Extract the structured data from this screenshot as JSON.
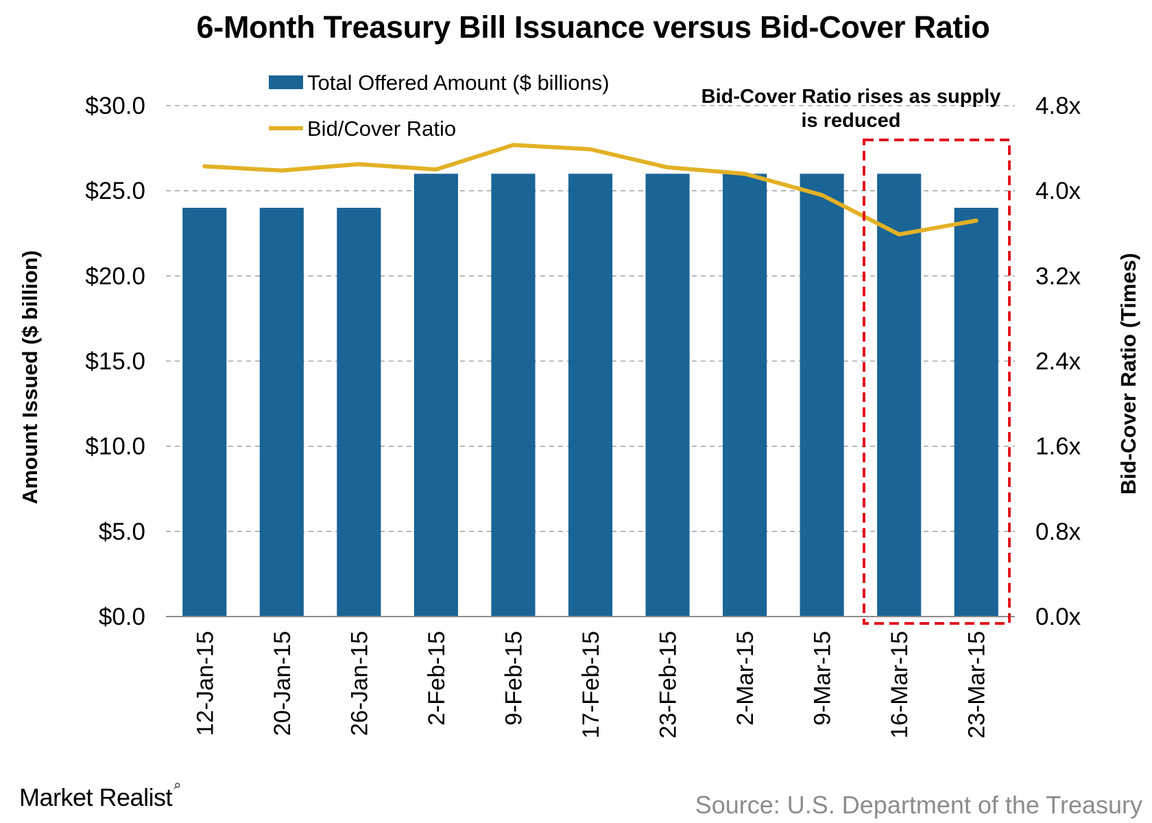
{
  "chart_data": {
    "type": "bar",
    "title": "6-Month Treasury Bill Issuance versus Bid-Cover Ratio",
    "categories": [
      "12-Jan-15",
      "20-Jan-15",
      "26-Jan-15",
      "2-Feb-15",
      "9-Feb-15",
      "17-Feb-15",
      "23-Feb-15",
      "2-Mar-15",
      "9-Mar-15",
      "16-Mar-15",
      "23-Mar-15"
    ],
    "series": [
      {
        "name": "Total Offered Amount ($ billions)",
        "type": "bar",
        "axis": "left",
        "color": "#1a6496",
        "values": [
          24,
          24,
          24,
          26,
          26,
          26,
          26,
          26,
          26,
          26,
          24
        ]
      },
      {
        "name": "Bid/Cover Ratio",
        "type": "line",
        "axis": "right",
        "color": "#e2b125",
        "values": [
          4.23,
          4.19,
          4.25,
          4.2,
          4.43,
          4.39,
          4.22,
          4.16,
          3.96,
          3.59,
          3.72
        ]
      }
    ],
    "y_left": {
      "label": "Amount Issued ($ billion)",
      "ylim": [
        0,
        30
      ],
      "ticks": [
        0,
        5,
        10,
        15,
        20,
        25,
        30
      ],
      "tick_labels": [
        "$0.0",
        "$5.0",
        "$10.0",
        "$15.0",
        "$20.0",
        "$25.0",
        "$30.0"
      ]
    },
    "y_right": {
      "label": "Bid-Cover Ratio (Times)",
      "ylim": [
        0,
        4.8
      ],
      "ticks": [
        0,
        0.8,
        1.6,
        2.4,
        3.2,
        4.0,
        4.8
      ],
      "tick_labels": [
        "0.0x",
        "0.8x",
        "1.6x",
        "2.4x",
        "3.2x",
        "4.0x",
        "4.8x"
      ]
    },
    "grid": "horizontal dashed",
    "legend_position": "top-left",
    "annotation": {
      "lines": [
        "Bid-Cover Ratio rises as supply",
        "is reduced"
      ],
      "highlight_categories": [
        "16-Mar-15",
        "23-Mar-15"
      ],
      "highlight_color": "#e0141e"
    }
  },
  "footer": {
    "brand": "Market Realist",
    "source": "Source: U.S. Department of the Treasury"
  }
}
